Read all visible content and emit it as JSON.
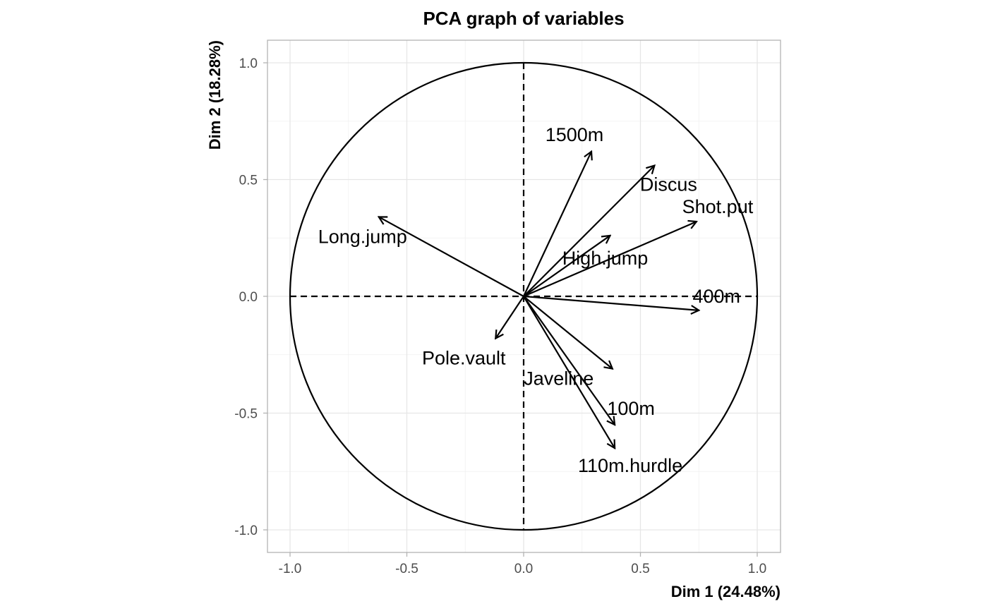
{
  "chart_data": {
    "type": "scatter",
    "subtype": "pca-variables-correlation-circle",
    "title": "PCA graph of variables",
    "xlabel": "Dim 1 (24.48%)",
    "ylabel": "Dim 2 (18.28%)",
    "xlim": [
      -1.1,
      1.1
    ],
    "ylim": [
      -1.1,
      1.1
    ],
    "xticks": [
      -1.0,
      -0.5,
      0.0,
      0.5,
      1.0
    ],
    "yticks": [
      -1.0,
      -0.5,
      0.0,
      0.5,
      1.0
    ],
    "xtick_labels": [
      "-1.0",
      "-0.5",
      "0.0",
      "0.5",
      "1.0"
    ],
    "ytick_labels": [
      "-1.0",
      "-0.5",
      "0.0",
      "0.5",
      "1.0"
    ],
    "grid": true,
    "unit_circle": true,
    "variables": [
      {
        "name": "1500m",
        "x": 0.29,
        "y": 0.62
      },
      {
        "name": "Discus",
        "x": 0.56,
        "y": 0.56
      },
      {
        "name": "Shot.put",
        "x": 0.74,
        "y": 0.32
      },
      {
        "name": "High.jump",
        "x": 0.37,
        "y": 0.26
      },
      {
        "name": "Long.jump",
        "x": -0.62,
        "y": 0.34
      },
      {
        "name": "400m",
        "x": 0.75,
        "y": -0.06
      },
      {
        "name": "Pole.vault",
        "x": -0.12,
        "y": -0.18
      },
      {
        "name": "Javeline",
        "x": 0.38,
        "y": -0.31
      },
      {
        "name": "100m",
        "x": 0.39,
        "y": -0.55
      },
      {
        "name": "110m.hurdle",
        "x": 0.39,
        "y": -0.65
      }
    ]
  }
}
